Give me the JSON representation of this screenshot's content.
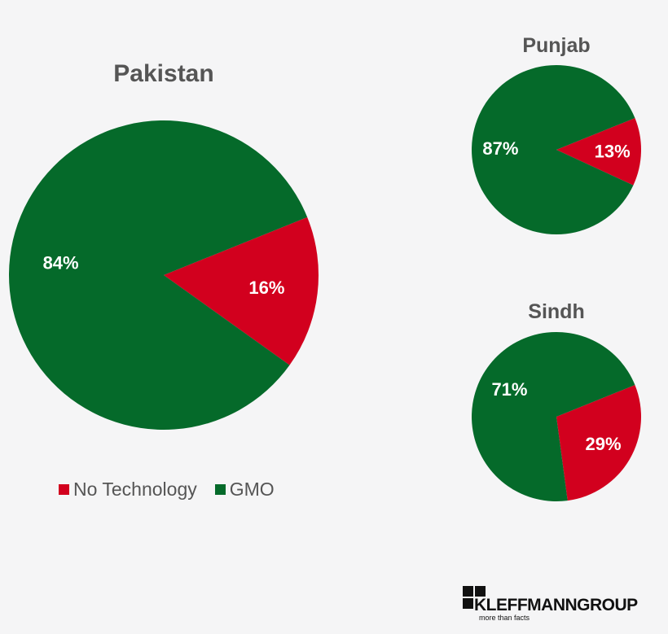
{
  "colors": {
    "no_technology": "#d2001e",
    "gmo": "#056a2a",
    "title": "#555555",
    "background": "#f5f5f6"
  },
  "legend": [
    {
      "label": "No Technology",
      "color": "#d2001e"
    },
    {
      "label": "GMO",
      "color": "#056a2a"
    }
  ],
  "logo": {
    "name": "KLEFFMANNGROUP",
    "tagline": "more than facts"
  },
  "chart_data": [
    {
      "type": "pie",
      "title": "Pakistan",
      "categories": [
        "No Technology",
        "GMO"
      ],
      "values": [
        16,
        84
      ],
      "labels": [
        "16%",
        "84%"
      ],
      "colors": [
        "#d2001e",
        "#056a2a"
      ],
      "legend": "bottom"
    },
    {
      "type": "pie",
      "title": "Punjab",
      "categories": [
        "No Technology",
        "GMO"
      ],
      "values": [
        13,
        87
      ],
      "labels": [
        "13%",
        "87%"
      ],
      "colors": [
        "#d2001e",
        "#056a2a"
      ]
    },
    {
      "type": "pie",
      "title": "Sindh",
      "categories": [
        "No Technology",
        "GMO"
      ],
      "values": [
        29,
        71
      ],
      "labels": [
        "29%",
        "71%"
      ],
      "colors": [
        "#d2001e",
        "#056a2a"
      ]
    }
  ]
}
